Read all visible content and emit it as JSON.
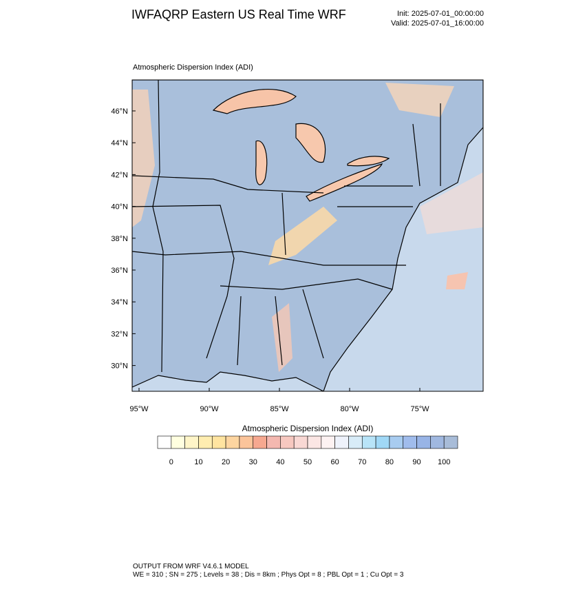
{
  "header": {
    "title": "IWFAQRP Eastern US Real Time WRF",
    "init": "Init: 2025-07-01_00:00:00",
    "valid": "Valid: 2025-07-01_16:00:00"
  },
  "map": {
    "title": "Atmospheric Dispersion Index   (ADI)",
    "lat_labels": [
      "46°N",
      "44°N",
      "42°N",
      "40°N",
      "38°N",
      "36°N",
      "34°N",
      "32°N",
      "30°N"
    ],
    "lon_labels": [
      "95°W",
      "90°W",
      "85°W",
      "80°W",
      "75°W"
    ]
  },
  "colorbar": {
    "title": "Atmospheric Dispersion Index  (ADI)",
    "labels": [
      "0",
      "10",
      "20",
      "30",
      "40",
      "50",
      "60",
      "70",
      "80",
      "90",
      "100"
    ],
    "colors": [
      "#ffffff",
      "#ffffe0",
      "#fff5c8",
      "#ffedb0",
      "#ffe4a0",
      "#fdd5a0",
      "#fbc49a",
      "#f6a890",
      "#f4b8b0",
      "#f7c8c0",
      "#f9d8d4",
      "#fbe6e4",
      "#fdf2f2",
      "#eef2fb",
      "#d8ecf8",
      "#b8e4f8",
      "#a0d8f6",
      "#a8ccf0",
      "#a0bcec",
      "#98b4e6",
      "#a0b8e0",
      "#a8bcd8"
    ]
  },
  "footer": {
    "line1": "OUTPUT FROM WRF V4.6.1 MODEL",
    "line2": "WE = 310 ; SN = 275 ; Levels = 38 ; Dis = 8km ; Phys Opt = 8 ; PBL Opt = 1 ; Cu Opt = 3"
  }
}
